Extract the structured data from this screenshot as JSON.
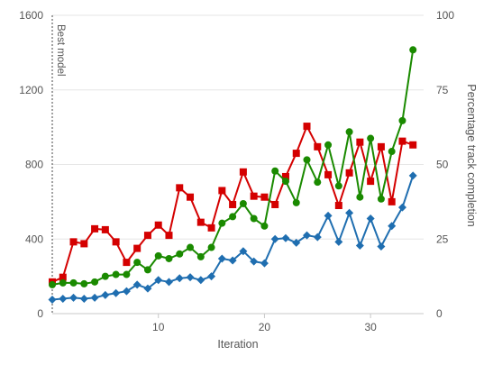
{
  "chart_data": {
    "type": "line",
    "title": "",
    "xlabel": "Iteration",
    "ylabel_left": "",
    "ylabel_right": "Percentage track completion",
    "xlim": [
      0,
      35
    ],
    "ylim_left": [
      0,
      1600
    ],
    "ylim_right": [
      0,
      100
    ],
    "grid": "horizontal",
    "legend": "none",
    "x_ticks": [
      10,
      20,
      30
    ],
    "y_ticks_left": [
      "0",
      "400",
      "800",
      "1200",
      "1600"
    ],
    "y_ticks_right": [
      "0",
      "25",
      "50",
      "75",
      "100"
    ],
    "annotation": {
      "text": "Best model",
      "x": 0
    },
    "x": [
      0,
      1,
      2,
      3,
      4,
      5,
      6,
      7,
      8,
      9,
      10,
      11,
      12,
      13,
      14,
      15,
      16,
      17,
      18,
      19,
      20,
      21,
      22,
      23,
      24,
      25,
      26,
      27,
      28,
      29,
      30,
      31,
      32,
      33,
      34,
      35
    ],
    "series": [
      {
        "color": "#d40000",
        "marker": "square",
        "axis": "left",
        "values": [
          170,
          195,
          385,
          375,
          455,
          450,
          385,
          275,
          350,
          420,
          475,
          420,
          675,
          625,
          490,
          460,
          660,
          585,
          760,
          630,
          625,
          585,
          735,
          860,
          1005,
          895,
          745,
          580,
          755,
          920,
          710,
          895,
          600,
          925,
          905,
          null
        ]
      },
      {
        "color": "#1a8a00",
        "marker": "circle",
        "axis": "left",
        "values": [
          155,
          165,
          165,
          160,
          170,
          200,
          210,
          210,
          275,
          235,
          310,
          295,
          320,
          355,
          305,
          355,
          485,
          520,
          590,
          510,
          470,
          765,
          710,
          595,
          825,
          705,
          905,
          685,
          975,
          625,
          940,
          615,
          870,
          1035,
          1415,
          null
        ]
      },
      {
        "color": "#1f6eb0",
        "marker": "diamond",
        "axis": "left",
        "values": [
          75,
          80,
          85,
          80,
          85,
          100,
          110,
          120,
          155,
          135,
          180,
          170,
          190,
          195,
          180,
          200,
          295,
          285,
          335,
          280,
          270,
          400,
          405,
          380,
          420,
          410,
          525,
          385,
          540,
          365,
          510,
          360,
          470,
          570,
          740,
          null
        ]
      }
    ]
  }
}
